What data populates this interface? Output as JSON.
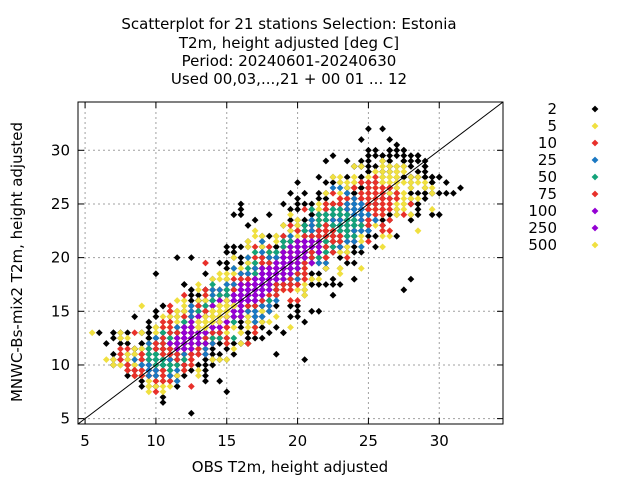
{
  "chart_data": {
    "type": "scatter",
    "title_lines": [
      "Scatterplot for   21 stations Selection: Estonia",
      "T2m, height adjusted [deg C]",
      "Period: 20240601-20240630",
      "Used 00,03,...,21 + 00 01 ... 12"
    ],
    "xlabel": "OBS T2m, height adjusted",
    "ylabel": "MNWC-Bs-mix2 T2m, height adjusted",
    "xlim": [
      4.5,
      34.5
    ],
    "ylim": [
      4.5,
      34.5
    ],
    "xticks": [
      5,
      10,
      15,
      20,
      25,
      30
    ],
    "yticks": [
      5,
      10,
      15,
      20,
      25,
      30
    ],
    "grid": true,
    "diagonal_line": true,
    "legend_position": "right",
    "density_classes": [
      {
        "name": "2",
        "color": "#000000",
        "center": [
          18.5,
          19.0
        ],
        "half_length": 14.5,
        "half_width": 3.4
      },
      {
        "name": "5",
        "color": "#f0e040",
        "center": [
          18.0,
          18.4
        ],
        "half_length": 13.8,
        "half_width": 2.6
      },
      {
        "name": "10",
        "color": "#e8302a",
        "center": [
          17.6,
          17.8
        ],
        "half_length": 12.6,
        "half_width": 2.0
      },
      {
        "name": "25",
        "color": "#1a78c2",
        "center": [
          17.0,
          17.2
        ],
        "half_length": 11.0,
        "half_width": 1.6
      },
      {
        "name": "50",
        "color": "#14a37a",
        "center": [
          16.8,
          17.0
        ],
        "half_length": 9.8,
        "half_width": 1.25
      },
      {
        "name": "75",
        "color": "#e8302a",
        "center": [
          16.6,
          16.8
        ],
        "half_length": 8.4,
        "half_width": 0.95
      },
      {
        "name": "100",
        "color": "#9400d3",
        "center": [
          16.4,
          16.6
        ],
        "half_length": 7.0,
        "half_width": 0.75
      },
      {
        "name": "250",
        "color": "#9400d3",
        "center": [
          16.2,
          16.3
        ],
        "half_length": 4.4,
        "half_width": 0.45
      },
      {
        "name": "500",
        "color": "#f0e040",
        "center": [
          14.2,
          14.6
        ],
        "half_length": 1.5,
        "half_width": 0.3
      }
    ]
  }
}
